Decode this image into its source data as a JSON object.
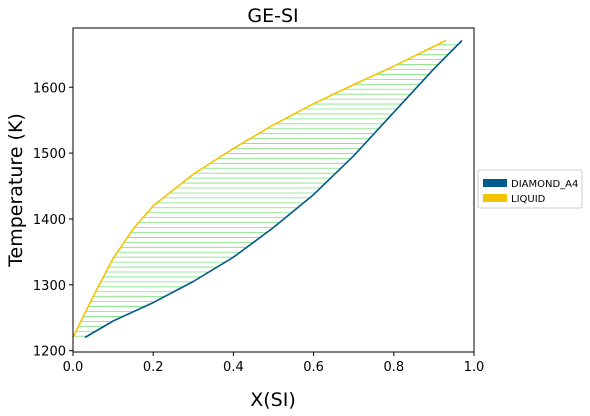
{
  "chart_data": {
    "type": "line",
    "title": "GE-SI",
    "xlabel": "X(SI)",
    "ylabel": "Temperature (K)",
    "xlim": [
      0.0,
      1.0
    ],
    "ylim": [
      1198,
      1690
    ],
    "xticks": [
      "0.0",
      "0.2",
      "0.4",
      "0.6",
      "0.8",
      "1.0"
    ],
    "yticks": [
      "1200",
      "1300",
      "1400",
      "1500",
      "1600"
    ],
    "grid": false,
    "legend_position": "right-outside",
    "colors": {
      "DIAMOND_A4": "#005a8c",
      "LIQUID": "#f2c500",
      "tie_lines": "#7fe07f"
    },
    "series": [
      {
        "name": "DIAMOND_A4",
        "x": [
          0.03,
          0.1,
          0.2,
          0.3,
          0.4,
          0.5,
          0.6,
          0.7,
          0.8,
          0.9,
          0.97
        ],
        "y": [
          1220,
          1245,
          1273,
          1305,
          1342,
          1387,
          1437,
          1496,
          1562,
          1628,
          1671
        ]
      },
      {
        "name": "LIQUID",
        "x": [
          0.0,
          0.05,
          0.1,
          0.15,
          0.2,
          0.3,
          0.4,
          0.5,
          0.6,
          0.7,
          0.8,
          0.93
        ],
        "y": [
          1220,
          1282,
          1340,
          1385,
          1420,
          1468,
          1507,
          1543,
          1575,
          1604,
          1632,
          1671
        ]
      }
    ]
  }
}
